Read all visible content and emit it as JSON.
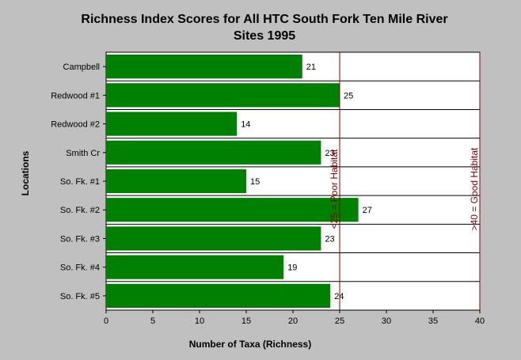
{
  "chart_data": {
    "type": "bar",
    "orientation": "horizontal",
    "title": "Richness Index Scores for All HTC South Fork Ten Mile River Sites 1995",
    "title_lines": [
      "Richness Index Scores for All HTC South Fork Ten Mile River",
      "Sites 1995"
    ],
    "xlabel": "Number of Taxa (Richness)",
    "ylabel": "Locations",
    "categories": [
      "Campbell",
      "Redwood #1",
      "Redwood #2",
      "Smith Cr",
      "So. Fk. #1",
      "So. Fk. #2",
      "So. Fk. #3",
      "So. Fk. #4",
      "So. Fk. #5"
    ],
    "values": [
      21,
      25,
      14,
      23,
      15,
      27,
      23,
      19,
      24
    ],
    "xlim": [
      0,
      40
    ],
    "xticks": [
      0,
      5,
      10,
      15,
      20,
      25,
      30,
      35,
      40
    ],
    "grid": "horizontal separators between categories",
    "bar_color": "#008000",
    "plot_background": "#ffffff",
    "page_background": "#c0c0c0",
    "reference_lines": [
      {
        "value": 25,
        "label": "<25 = Poor Habitat",
        "color": "#800000"
      },
      {
        "value": 40,
        "label": ">40 = Good Habitat",
        "color": "#800000"
      }
    ]
  }
}
